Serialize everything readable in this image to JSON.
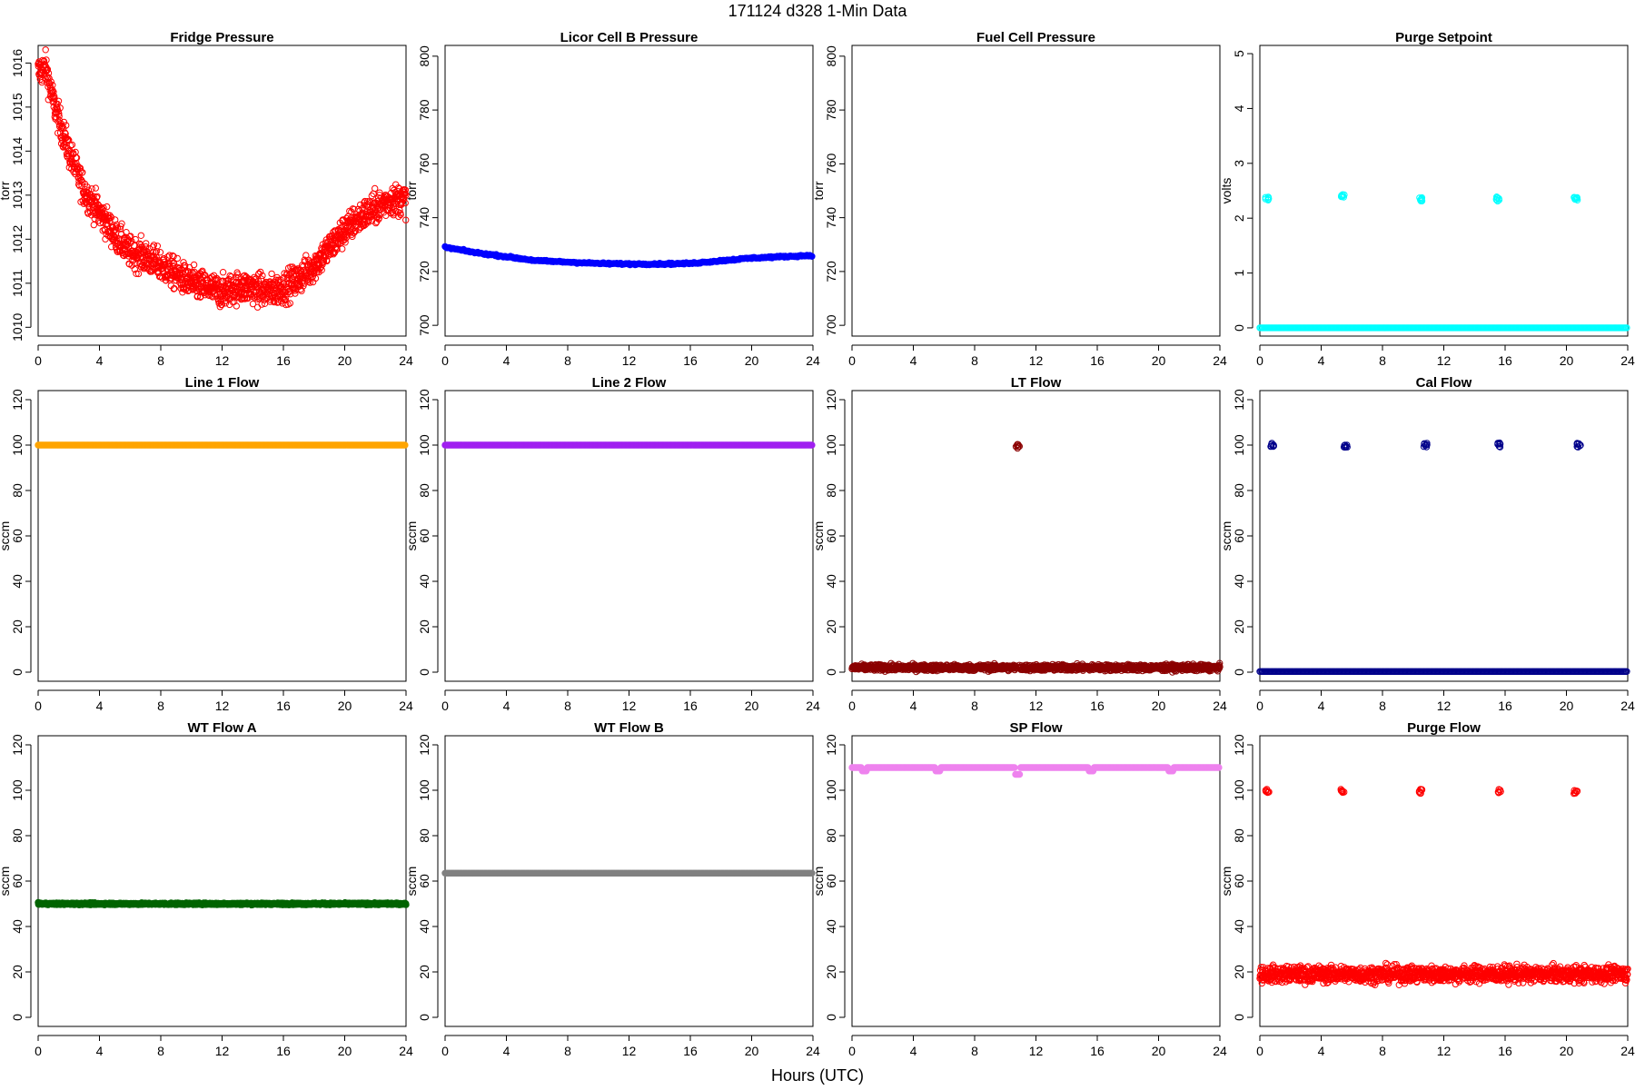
{
  "figure": {
    "title": "171124    d328    1-Min Data",
    "xlabel": "Hours (UTC)"
  },
  "chart_data": [
    {
      "type": "scatter",
      "title": "Fridge Pressure",
      "ylabel": "torr",
      "xlim": [
        0,
        24
      ],
      "ylim": [
        1009.8,
        1016.4
      ],
      "xticks": [
        0,
        4,
        8,
        12,
        16,
        20,
        24
      ],
      "yticks": [
        1010,
        1011,
        1012,
        1013,
        1014,
        1015,
        1016
      ],
      "color": "#ff0000",
      "marker": "open",
      "trend": [
        [
          0,
          1015.8
        ],
        [
          0.5,
          1015.9
        ],
        [
          1,
          1015.1
        ],
        [
          2,
          1014.0
        ],
        [
          3,
          1013.1
        ],
        [
          4,
          1012.6
        ],
        [
          5,
          1012.1
        ],
        [
          6,
          1011.7
        ],
        [
          7,
          1011.6
        ],
        [
          8,
          1011.4
        ],
        [
          9,
          1011.2
        ],
        [
          10,
          1011.0
        ],
        [
          11,
          1010.9
        ],
        [
          12,
          1010.8
        ],
        [
          13,
          1010.9
        ],
        [
          14,
          1010.9
        ],
        [
          15,
          1010.8
        ],
        [
          16,
          1010.9
        ],
        [
          17,
          1011.1
        ],
        [
          18,
          1011.4
        ],
        [
          19,
          1011.8
        ],
        [
          20,
          1012.2
        ],
        [
          21,
          1012.5
        ],
        [
          22,
          1012.7
        ],
        [
          23,
          1012.9
        ],
        [
          24,
          1012.9
        ]
      ],
      "noise": 0.35
    },
    {
      "type": "scatter",
      "title": "Licor Cell B Pressure",
      "ylabel": "torr",
      "xlim": [
        0,
        24
      ],
      "ylim": [
        696,
        804
      ],
      "xticks": [
        0,
        4,
        8,
        12,
        16,
        20,
        24
      ],
      "yticks": [
        700,
        720,
        740,
        760,
        780,
        800
      ],
      "color": "#0000ff",
      "marker": "filled",
      "trend": [
        [
          0,
          729
        ],
        [
          2,
          727
        ],
        [
          4,
          725.5
        ],
        [
          6,
          724
        ],
        [
          8,
          723.5
        ],
        [
          10,
          723
        ],
        [
          12,
          722.8
        ],
        [
          14,
          722.8
        ],
        [
          16,
          723
        ],
        [
          18,
          724
        ],
        [
          20,
          725
        ],
        [
          22,
          725.5
        ],
        [
          24,
          726
        ]
      ],
      "noise": 0
    },
    {
      "type": "scatter",
      "title": "Fuel Cell Pressure",
      "ylabel": "torr",
      "xlim": [
        0,
        24
      ],
      "ylim": [
        696,
        804
      ],
      "xticks": [
        0,
        4,
        8,
        12,
        16,
        20,
        24
      ],
      "yticks": [
        700,
        720,
        740,
        760,
        780,
        800
      ],
      "color": "#000000",
      "marker": "none",
      "trend": [],
      "noise": 0
    },
    {
      "type": "scatter",
      "title": "Purge Setpoint",
      "ylabel": "volts",
      "xlim": [
        0,
        24
      ],
      "ylim": [
        -0.15,
        5.15
      ],
      "xticks": [
        0,
        4,
        8,
        12,
        16,
        20,
        24
      ],
      "yticks": [
        0,
        1,
        2,
        3,
        4,
        5
      ],
      "color": "#00ffff",
      "marker": "open",
      "trend": [
        [
          0,
          0
        ],
        [
          24,
          0
        ]
      ],
      "noise": 0,
      "events": [
        {
          "x": 0.5,
          "y": 2.35
        },
        {
          "x": 5.4,
          "y": 2.4
        },
        {
          "x": 10.5,
          "y": 2.35
        },
        {
          "x": 15.5,
          "y": 2.35
        },
        {
          "x": 20.6,
          "y": 2.35
        }
      ]
    },
    {
      "type": "scatter",
      "title": "Line 1 Flow",
      "ylabel": "sccm",
      "xlim": [
        0,
        24
      ],
      "ylim": [
        -4,
        124
      ],
      "xticks": [
        0,
        4,
        8,
        12,
        16,
        20,
        24
      ],
      "yticks": [
        0,
        20,
        40,
        60,
        80,
        100,
        120
      ],
      "color": "#ffa500",
      "marker": "filled",
      "trend": [
        [
          0,
          100
        ],
        [
          24,
          100
        ]
      ],
      "noise": 0
    },
    {
      "type": "scatter",
      "title": "Line 2 Flow",
      "ylabel": "sccm",
      "xlim": [
        0,
        24
      ],
      "ylim": [
        -4,
        124
      ],
      "xticks": [
        0,
        4,
        8,
        12,
        16,
        20,
        24
      ],
      "yticks": [
        0,
        20,
        40,
        60,
        80,
        100,
        120
      ],
      "color": "#a020f0",
      "marker": "filled",
      "trend": [
        [
          0,
          100
        ],
        [
          24,
          100
        ]
      ],
      "noise": 0
    },
    {
      "type": "scatter",
      "title": "LT Flow",
      "ylabel": "sccm",
      "xlim": [
        0,
        24
      ],
      "ylim": [
        -4,
        124
      ],
      "xticks": [
        0,
        4,
        8,
        12,
        16,
        20,
        24
      ],
      "yticks": [
        0,
        20,
        40,
        60,
        80,
        100,
        120
      ],
      "color": "#8b0000",
      "marker": "open",
      "trend": [
        [
          0,
          2
        ],
        [
          24,
          2
        ]
      ],
      "noise": 2.2,
      "events": [
        {
          "x": 10.8,
          "y": 99.5
        }
      ]
    },
    {
      "type": "scatter",
      "title": "Cal Flow",
      "ylabel": "sccm",
      "xlim": [
        0,
        24
      ],
      "ylim": [
        -4,
        124
      ],
      "xticks": [
        0,
        4,
        8,
        12,
        16,
        20,
        24
      ],
      "yticks": [
        0,
        20,
        40,
        60,
        80,
        100,
        120
      ],
      "color": "#00008b",
      "marker": "open",
      "trend": [
        [
          0,
          0.3
        ],
        [
          24,
          0.3
        ]
      ],
      "noise": 0,
      "events": [
        {
          "x": 0.8,
          "y": 100
        },
        {
          "x": 5.6,
          "y": 100
        },
        {
          "x": 10.8,
          "y": 100
        },
        {
          "x": 15.6,
          "y": 100
        },
        {
          "x": 20.8,
          "y": 100
        }
      ]
    },
    {
      "type": "scatter",
      "title": "WT Flow A",
      "ylabel": "sccm",
      "xlim": [
        0,
        24
      ],
      "ylim": [
        -4,
        124
      ],
      "xticks": [
        0,
        4,
        8,
        12,
        16,
        20,
        24
      ],
      "yticks": [
        0,
        20,
        40,
        60,
        80,
        100,
        120
      ],
      "color": "#006400",
      "marker": "filled",
      "trend": [
        [
          0,
          50
        ],
        [
          24,
          50
        ]
      ],
      "noise": 0.4
    },
    {
      "type": "scatter",
      "title": "WT Flow B",
      "ylabel": "sccm",
      "xlim": [
        0,
        24
      ],
      "ylim": [
        -4,
        124
      ],
      "xticks": [
        0,
        4,
        8,
        12,
        16,
        20,
        24
      ],
      "yticks": [
        0,
        20,
        40,
        60,
        80,
        100,
        120
      ],
      "color": "#808080",
      "marker": "filled",
      "trend": [
        [
          0,
          63.5
        ],
        [
          24,
          63.5
        ]
      ],
      "noise": 0
    },
    {
      "type": "scatter",
      "title": "SP Flow",
      "ylabel": "sccm",
      "xlim": [
        0,
        24
      ],
      "ylim": [
        -4,
        124
      ],
      "xticks": [
        0,
        4,
        8,
        12,
        16,
        20,
        24
      ],
      "yticks": [
        0,
        20,
        40,
        60,
        80,
        100,
        120
      ],
      "color": "#ee82ee",
      "marker": "filled",
      "trend": [
        [
          0,
          110
        ],
        [
          24,
          110
        ]
      ],
      "noise": 0,
      "dips": [
        {
          "x": 0.8,
          "y": 108.5
        },
        {
          "x": 5.6,
          "y": 108.5
        },
        {
          "x": 10.8,
          "y": 107
        },
        {
          "x": 15.6,
          "y": 108.5
        },
        {
          "x": 20.8,
          "y": 108.5
        }
      ]
    },
    {
      "type": "scatter",
      "title": "Purge Flow",
      "ylabel": "sccm",
      "xlim": [
        0,
        24
      ],
      "ylim": [
        -4,
        124
      ],
      "xticks": [
        0,
        4,
        8,
        12,
        16,
        20,
        24
      ],
      "yticks": [
        0,
        20,
        40,
        60,
        80,
        100,
        120
      ],
      "color": "#ff0000",
      "marker": "open",
      "trend": [
        [
          0,
          19
        ],
        [
          24,
          19
        ]
      ],
      "noise": 3.5,
      "events": [
        {
          "x": 0.5,
          "y": 99.5
        },
        {
          "x": 5.4,
          "y": 99.5
        },
        {
          "x": 10.5,
          "y": 99.5
        },
        {
          "x": 15.6,
          "y": 99.5
        },
        {
          "x": 20.6,
          "y": 99.5
        }
      ]
    }
  ]
}
